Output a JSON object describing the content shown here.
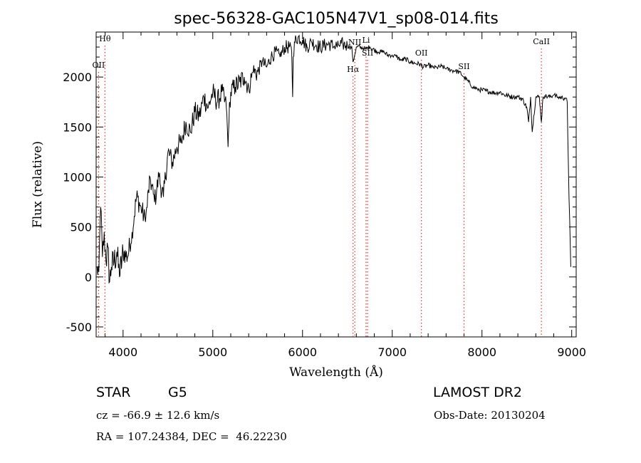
{
  "chart_data": {
    "type": "line",
    "title": "spec-56328-GAC105N47V1_sp08-014.fits",
    "xlabel": "Wavelength (Å)",
    "ylabel": "Flux (relative)",
    "xlim": [
      3700,
      9050
    ],
    "ylim": [
      -600,
      2450
    ],
    "x_ticks": [
      4000,
      5000,
      6000,
      7000,
      8000,
      9000
    ],
    "x_tick_labels": [
      "4000",
      "5000",
      "6000",
      "7000",
      "8000",
      "9000"
    ],
    "y_ticks": [
      -500,
      0,
      500,
      1000,
      1500,
      2000
    ],
    "y_tick_labels": [
      "-500",
      "0",
      "500",
      "1000",
      "1500",
      "2000"
    ],
    "series": [
      {
        "name": "spectrum",
        "color": "#000000",
        "x": [
          3710,
          3730,
          3750,
          3770,
          3790,
          3810,
          3830,
          3850,
          3870,
          3900,
          3930,
          3960,
          4000,
          4050,
          4100,
          4150,
          4200,
          4250,
          4300,
          4350,
          4400,
          4450,
          4500,
          4550,
          4600,
          4650,
          4700,
          4750,
          4800,
          4850,
          4900,
          4950,
          5000,
          5050,
          5100,
          5150,
          5170,
          5180,
          5190,
          5200,
          5250,
          5300,
          5350,
          5400,
          5450,
          5500,
          5550,
          5600,
          5650,
          5700,
          5750,
          5800,
          5850,
          5880,
          5890,
          5896,
          5910,
          5950,
          6000,
          6050,
          6100,
          6150,
          6200,
          6250,
          6300,
          6350,
          6400,
          6450,
          6500,
          6550,
          6563,
          6600,
          6650,
          6700,
          6750,
          6800,
          6850,
          6900,
          6950,
          7000,
          7050,
          7100,
          7150,
          7200,
          7250,
          7300,
          7350,
          7400,
          7450,
          7500,
          7550,
          7600,
          7650,
          7700,
          7750,
          7800,
          7850,
          7900,
          7950,
          8000,
          8050,
          8100,
          8150,
          8200,
          8250,
          8300,
          8350,
          8400,
          8450,
          8498,
          8520,
          8542,
          8560,
          8600,
          8640,
          8662,
          8680,
          8700,
          8750,
          8800,
          8850,
          8900,
          8930,
          8950,
          8970,
          8990
        ],
        "y": [
          100,
          50,
          700,
          200,
          450,
          150,
          300,
          -50,
          100,
          150,
          250,
          0,
          250,
          200,
          450,
          800,
          700,
          550,
          1000,
          750,
          1000,
          800,
          1250,
          1150,
          1300,
          1350,
          1550,
          1450,
          1650,
          1600,
          1800,
          1700,
          1850,
          1750,
          1850,
          1700,
          1300,
          1550,
          1750,
          1850,
          1900,
          1950,
          2000,
          1900,
          2050,
          2050,
          2150,
          2100,
          2200,
          2250,
          2200,
          2300,
          2300,
          2250,
          1800,
          2200,
          2350,
          2400,
          2370,
          2300,
          2350,
          2320,
          2300,
          2320,
          2330,
          2300,
          2320,
          2330,
          2310,
          2300,
          2150,
          2300,
          2300,
          2280,
          2300,
          2270,
          2250,
          2250,
          2220,
          2220,
          2200,
          2170,
          2180,
          2150,
          2140,
          2130,
          2100,
          2120,
          2100,
          2090,
          2110,
          2080,
          2070,
          2060,
          2050,
          2000,
          1950,
          1900,
          1880,
          1870,
          1860,
          1850,
          1840,
          1850,
          1820,
          1810,
          1800,
          1800,
          1780,
          1700,
          1550,
          1800,
          1450,
          1800,
          1800,
          1550,
          1800,
          1810,
          1800,
          1820,
          1800,
          1790,
          1790,
          1750,
          800,
          100
        ]
      }
    ],
    "line_markers": [
      {
        "label": "Hθ",
        "wavelength": 3798
      },
      {
        "label": "OII",
        "wavelength": 3727
      },
      {
        "label": "Hα",
        "wavelength": 6563
      },
      {
        "label": "NII",
        "wavelength": 6583
      },
      {
        "label": "Li",
        "wavelength": 6708
      },
      {
        "label": "SII",
        "wavelength": 6725
      },
      {
        "label": "OII",
        "wavelength": 7325
      },
      {
        "label": "SII",
        "wavelength": 7800
      },
      {
        "label": "CaII",
        "wavelength": 8662
      }
    ],
    "marker_color": "#e8322d",
    "grid": false,
    "legend": "none"
  },
  "info": {
    "object_type": "STAR",
    "object_class": "G5",
    "survey": "LAMOST DR2",
    "cz": "cz = -66.9 ± 12.6 km/s",
    "obs_date": "Obs-Date: 20130204",
    "coords": "RA = 107.24384, DEC =  46.22230"
  }
}
